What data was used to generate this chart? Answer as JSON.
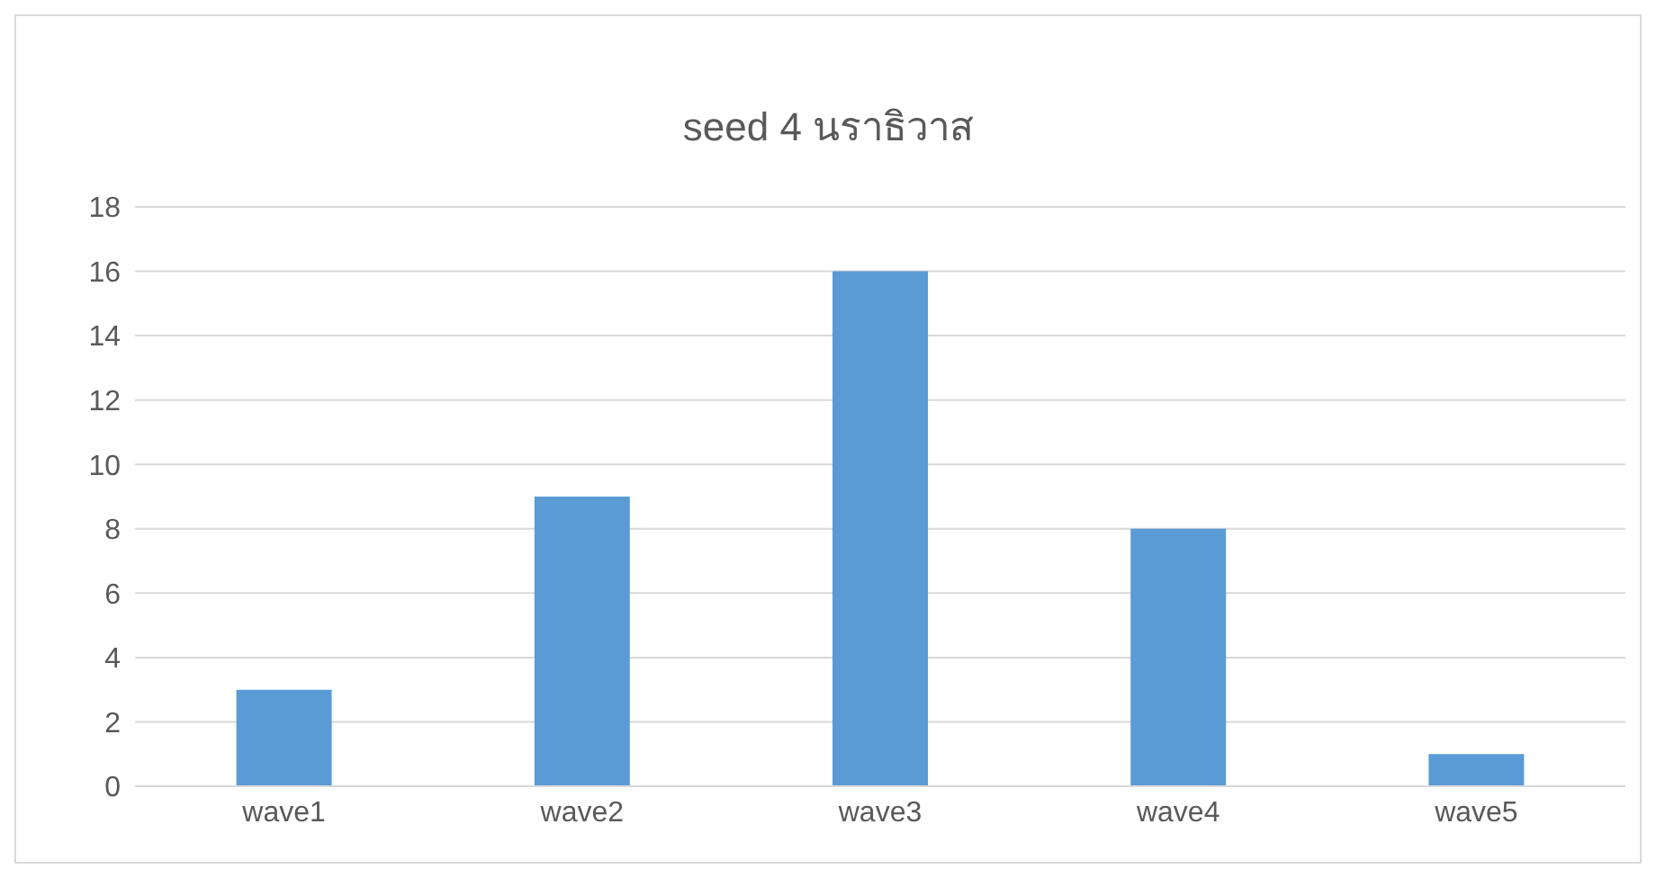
{
  "chart_data": {
    "type": "bar",
    "title": "seed 4 นราธิวาส",
    "categories": [
      "wave1",
      "wave2",
      "wave3",
      "wave4",
      "wave5"
    ],
    "values": [
      3,
      9,
      16,
      8,
      1
    ],
    "color": "#5b9bd5",
    "ylim": [
      0,
      18
    ],
    "yticks": [
      0,
      2,
      4,
      6,
      8,
      10,
      12,
      14,
      16,
      18
    ],
    "grid": "y",
    "legend": false
  }
}
